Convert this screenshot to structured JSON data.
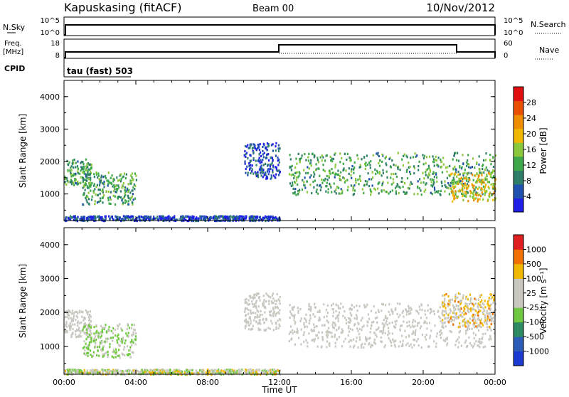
{
  "header": {
    "station": "Kapuskasing (fitACF)",
    "beam": "Beam 00",
    "date": "10/Nov/2012"
  },
  "top_panels": {
    "nsky_label": "N.Sky",
    "nsky_ticks": [
      "10^5",
      "10^0"
    ],
    "nsearch_label": "N.Search",
    "nsearch_ticks": [
      "10^5",
      "10^0"
    ],
    "freq_label_1": "Freq.",
    "freq_label_2": "[MHz]",
    "freq_ticks": [
      "18",
      "8"
    ],
    "nave_label": "Nave",
    "nave_ticks": [
      "60",
      "0"
    ],
    "cpid_label": "CPID",
    "cpid_value": "tau (fast) 503"
  },
  "chart_data": [
    {
      "type": "heatmap",
      "name": "power",
      "ylabel": "Slant Range [km]",
      "yticks": [
        "4000",
        "3000",
        "2000",
        "1000"
      ],
      "ylim": [
        180,
        4500
      ],
      "xlim": [
        0,
        24
      ],
      "colorbar_label": "Power [dB]",
      "colorbar_ticks": [
        "28",
        "24",
        "20",
        "16",
        "12",
        "8",
        "4"
      ],
      "colors": [
        "#1e1ee6",
        "#2050b0",
        "#2f7e6a",
        "#3ea84a",
        "#8cc83c",
        "#f0b800",
        "#f08c00",
        "#e85000",
        "#e01010"
      ],
      "echo_regions": [
        {
          "t_start": 0.0,
          "t_end": 1.5,
          "r_low": 1300,
          "r_high": 2100,
          "level": "mid"
        },
        {
          "t_start": 1.0,
          "t_end": 4.0,
          "r_low": 700,
          "r_high": 1700,
          "level": "mid"
        },
        {
          "t_start": 0.0,
          "t_end": 12.0,
          "r_low": 200,
          "r_high": 350,
          "level": "low"
        },
        {
          "t_start": 10.0,
          "t_end": 12.0,
          "r_low": 1500,
          "r_high": 2600,
          "level": "low"
        },
        {
          "t_start": 12.5,
          "t_end": 24.0,
          "r_low": 1000,
          "r_high": 2300,
          "level": "mid"
        },
        {
          "t_start": 21.5,
          "t_end": 24.0,
          "r_low": 800,
          "r_high": 1700,
          "level": "high"
        }
      ]
    },
    {
      "type": "heatmap",
      "name": "velocity",
      "ylabel": "Slant Range [km]",
      "yticks": [
        "4000",
        "3000",
        "2000",
        "1000"
      ],
      "ylim": [
        180,
        4500
      ],
      "xlim": [
        0,
        24
      ],
      "xlabel": "Time UT",
      "xticks": [
        "00:00",
        "04:00",
        "08:00",
        "12:00",
        "16:00",
        "20:00",
        "00:00"
      ],
      "colorbar_label": "Velocity [m s⁻¹]",
      "colorbar_ticks": [
        "1000",
        "500",
        "100",
        "25",
        "-25",
        "-100",
        "-500",
        "-1000"
      ],
      "colors": [
        "#1a3ad0",
        "#2a5cb8",
        "#2e8a60",
        "#70c840",
        "#c8c8c0",
        "#c8c8c0",
        "#f0b800",
        "#f07000",
        "#e02020"
      ],
      "echo_regions": [
        {
          "t_start": 0.0,
          "t_end": 1.5,
          "r_low": 1300,
          "r_high": 2100,
          "level": "ground"
        },
        {
          "t_start": 1.0,
          "t_end": 4.0,
          "r_low": 700,
          "r_high": 1700,
          "level": "green"
        },
        {
          "t_start": 0.0,
          "t_end": 12.0,
          "r_low": 200,
          "r_high": 350,
          "level": "mixed"
        },
        {
          "t_start": 10.0,
          "t_end": 12.0,
          "r_low": 1500,
          "r_high": 2600,
          "level": "ground"
        },
        {
          "t_start": 12.5,
          "t_end": 24.0,
          "r_low": 1000,
          "r_high": 2300,
          "level": "ground"
        },
        {
          "t_start": 21.0,
          "t_end": 24.0,
          "r_low": 1600,
          "r_high": 2600,
          "level": "orange"
        }
      ]
    }
  ]
}
